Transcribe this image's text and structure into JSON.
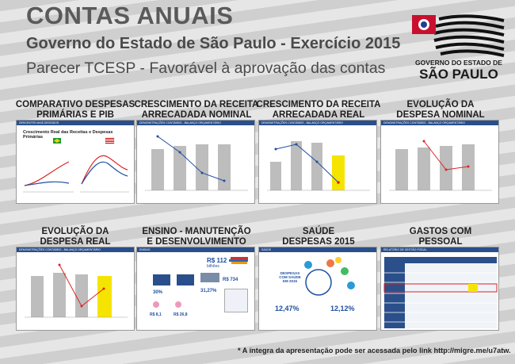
{
  "header": {
    "title": "CONTAS ANUAIS",
    "subtitle": "Governo do Estado de São Paulo - Exercício 2015",
    "tagline": "Parecer TCESP - Favorável à aprovação das contas",
    "logo_line1": "GOVERNO DO ESTADO DE",
    "logo_line2": "SÃO PAULO"
  },
  "panels": [
    {
      "title_l1": "COMPARATIVO DESPESAS",
      "title_l2": "PRIMÁRIAS E PIB",
      "bar": "DIRIGENTES MAIS DIRIGIDOS",
      "chart_title": "Crescimento Real das Receitas e Despesas Primárias"
    },
    {
      "title_l1": "CRESCIMENTO DA RECEITA",
      "title_l2": "ARRECADADA NOMINAL",
      "bar": "DEMONSTRAÇÕES CONTÁBEIS - BALANÇO ORÇAMENTÁRIO"
    },
    {
      "title_l1": "CRESCIMENTO DA RECEITA",
      "title_l2": "ARRECADADA REAL",
      "bar": "DEMONSTRAÇÕES CONTÁBEIS - BALANÇO ORÇAMENTÁRIO"
    },
    {
      "title_l1": "EVOLUÇÃO DA",
      "title_l2": "DESPESA NOMINAL",
      "bar": "DEMONSTRAÇÕES CONTÁBEIS - BALANÇO ORÇAMENTÁRIO"
    },
    {
      "title_l1": "EVOLUÇÃO DA",
      "title_l2": "DESPESA REAL",
      "bar": "DEMONSTRAÇÕES CONTÁBEIS - BALANÇO ORÇAMENTÁRIO"
    },
    {
      "title_l1": "ENSINO - MANUTENÇÃO",
      "title_l2": "E DESENVOLVIMENTO",
      "bar": "ENSINO",
      "big_value": "R$ 112",
      "big_unit": "bilhões",
      "sub_value": "R$ 734",
      "p1": "30%",
      "p2": "31,27%",
      "v1": "R$ 35,1",
      "v2": "R$ 8,1",
      "v3": "R$ 26,8"
    },
    {
      "title_l1": "SAÚDE",
      "title_l2": "DESPESAS 2015",
      "bar": "SAÚDE",
      "header_text": "DESPESAS COM SAÚDE EM 2015",
      "pct_left": "12,47%",
      "pct_right": "12,12%"
    },
    {
      "title_l1": "GASTOS COM",
      "title_l2": "PESSOAL",
      "bar": "RELATÓRIO DE GESTÃO FISCAL"
    }
  ],
  "footer": "* A íntegra da apresentação pode ser acessada pelo link http://migre.me/u7atw."
}
